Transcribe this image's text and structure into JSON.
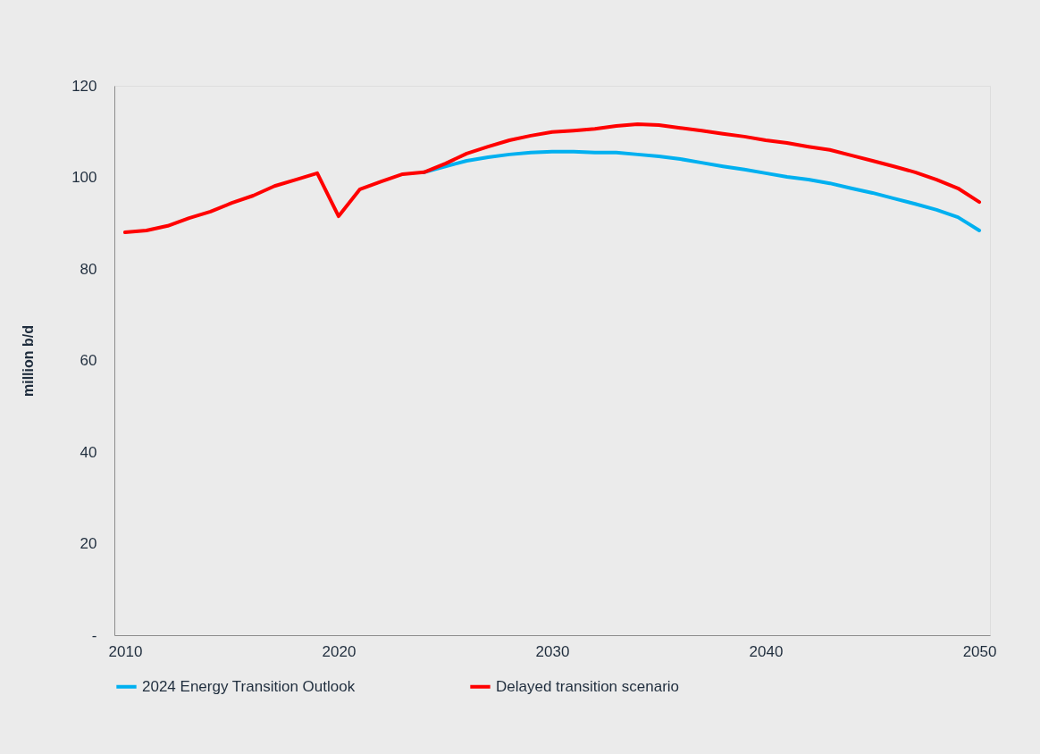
{
  "chart_data": {
    "type": "line",
    "ylabel": "million b/d",
    "x": [
      2010,
      2011,
      2012,
      2013,
      2014,
      2015,
      2016,
      2017,
      2018,
      2019,
      2020,
      2021,
      2022,
      2023,
      2024,
      2025,
      2026,
      2027,
      2028,
      2029,
      2030,
      2031,
      2032,
      2033,
      2034,
      2035,
      2036,
      2037,
      2038,
      2039,
      2040,
      2041,
      2042,
      2043,
      2044,
      2045,
      2046,
      2047,
      2048,
      2049,
      2050
    ],
    "series": [
      {
        "name": "2024 Energy Transition Outlook",
        "color": "#00b0f0",
        "values": [
          null,
          null,
          null,
          null,
          null,
          null,
          null,
          null,
          null,
          null,
          null,
          null,
          null,
          null,
          101.1,
          102.4,
          103.6,
          104.4,
          105.0,
          105.4,
          105.6,
          105.6,
          105.4,
          105.4,
          105.0,
          104.6,
          104.0,
          103.2,
          102.4,
          101.7,
          100.9,
          100.1,
          99.5,
          98.7,
          97.6,
          96.6,
          95.4,
          94.2,
          92.9,
          91.3,
          88.4
        ]
      },
      {
        "name": "Delayed transition scenario",
        "color": "#ff0000",
        "values": [
          88.0,
          88.4,
          89.4,
          91.1,
          92.5,
          94.4,
          96.0,
          98.1,
          99.5,
          100.9,
          91.5,
          97.4,
          99.1,
          100.7,
          101.1,
          103.0,
          105.2,
          106.7,
          108.1,
          109.1,
          109.9,
          110.2,
          110.6,
          111.2,
          111.6,
          111.4,
          110.8,
          110.2,
          109.5,
          108.9,
          108.1,
          107.5,
          106.7,
          106.0,
          104.8,
          103.6,
          102.4,
          101.1,
          99.5,
          97.6,
          94.6
        ]
      }
    ],
    "xlim": [
      2009.5,
      2050.5
    ],
    "xticks": [
      2010,
      2020,
      2030,
      2040,
      2050
    ],
    "ylim": [
      0,
      120
    ],
    "yticks": [
      {
        "value": 0,
        "label": "-"
      },
      20,
      40,
      60,
      80,
      100,
      120
    ],
    "grid": false,
    "legend": "bottom",
    "marker": "none",
    "line_style": "solid"
  }
}
